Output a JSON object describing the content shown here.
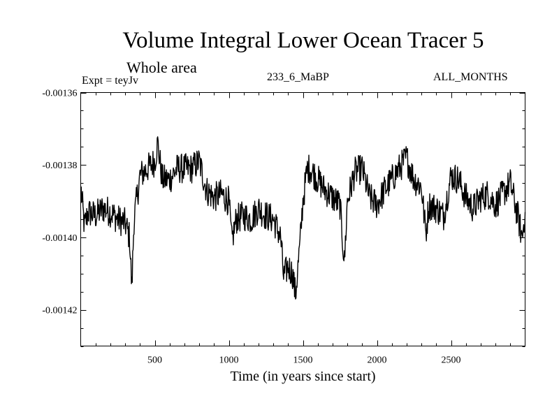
{
  "chart_data": {
    "type": "line",
    "title": "Volume Integral Lower Ocean Tracer 5",
    "subtitle": "Whole area",
    "experiment_label": "Expt = teyJv",
    "experiment_name": "233_6_MaBP",
    "period": "ALL_MONTHS",
    "xlabel": "Time (in years since start)",
    "ylabel": "",
    "xlim": [
      0,
      3000
    ],
    "ylim": [
      -0.00143,
      -0.00136
    ],
    "x_ticks": [
      500,
      1000,
      1500,
      2000,
      2500
    ],
    "x_tick_labels": [
      "500",
      "1000",
      "1500",
      "2000",
      "2500"
    ],
    "y_ticks": [
      -0.00136,
      -0.00138,
      -0.0014,
      -0.00142
    ],
    "y_tick_labels": [
      "-0.00136",
      "-0.00138",
      "-0.00140",
      "-0.00142"
    ],
    "grid": false,
    "series": [
      {
        "name": "Volume Integral Lower Ocean Tracer 5",
        "x": [
          0,
          25,
          50,
          100,
          150,
          200,
          250,
          300,
          330,
          345,
          360,
          400,
          450,
          500,
          520,
          550,
          600,
          650,
          700,
          750,
          800,
          850,
          900,
          950,
          1000,
          1020,
          1050,
          1100,
          1150,
          1200,
          1250,
          1300,
          1350,
          1370,
          1400,
          1430,
          1450,
          1480,
          1500,
          1530,
          1550,
          1600,
          1650,
          1700,
          1750,
          1780,
          1800,
          1850,
          1900,
          1950,
          2000,
          2050,
          2100,
          2150,
          2200,
          2250,
          2300,
          2330,
          2350,
          2400,
          2450,
          2500,
          2550,
          2600,
          2650,
          2700,
          2750,
          2800,
          2850,
          2900,
          2950,
          2980,
          3000
        ],
        "values": [
          -0.001386,
          -0.001397,
          -0.001393,
          -0.001394,
          -0.001392,
          -0.001393,
          -0.001395,
          -0.001396,
          -0.0014,
          -0.001414,
          -0.001395,
          -0.001383,
          -0.001381,
          -0.001379,
          -0.001374,
          -0.001384,
          -0.001384,
          -0.001381,
          -0.001381,
          -0.001381,
          -0.001379,
          -0.001387,
          -0.001389,
          -0.001388,
          -0.00139,
          -0.001401,
          -0.001395,
          -0.001394,
          -0.001395,
          -0.001392,
          -0.001394,
          -0.001395,
          -0.0014,
          -0.001411,
          -0.001408,
          -0.00141,
          -0.001416,
          -0.001402,
          -0.00139,
          -0.001381,
          -0.001381,
          -0.001384,
          -0.001387,
          -0.001389,
          -0.001391,
          -0.001407,
          -0.00139,
          -0.001382,
          -0.001381,
          -0.001389,
          -0.001391,
          -0.001387,
          -0.001384,
          -0.001381,
          -0.001378,
          -0.001384,
          -0.001386,
          -0.001399,
          -0.001391,
          -0.001392,
          -0.001394,
          -0.001383,
          -0.001384,
          -0.001389,
          -0.001392,
          -0.001389,
          -0.001388,
          -0.001391,
          -0.001388,
          -0.001385,
          -0.001394,
          -0.0014,
          -0.001393
        ]
      }
    ]
  }
}
